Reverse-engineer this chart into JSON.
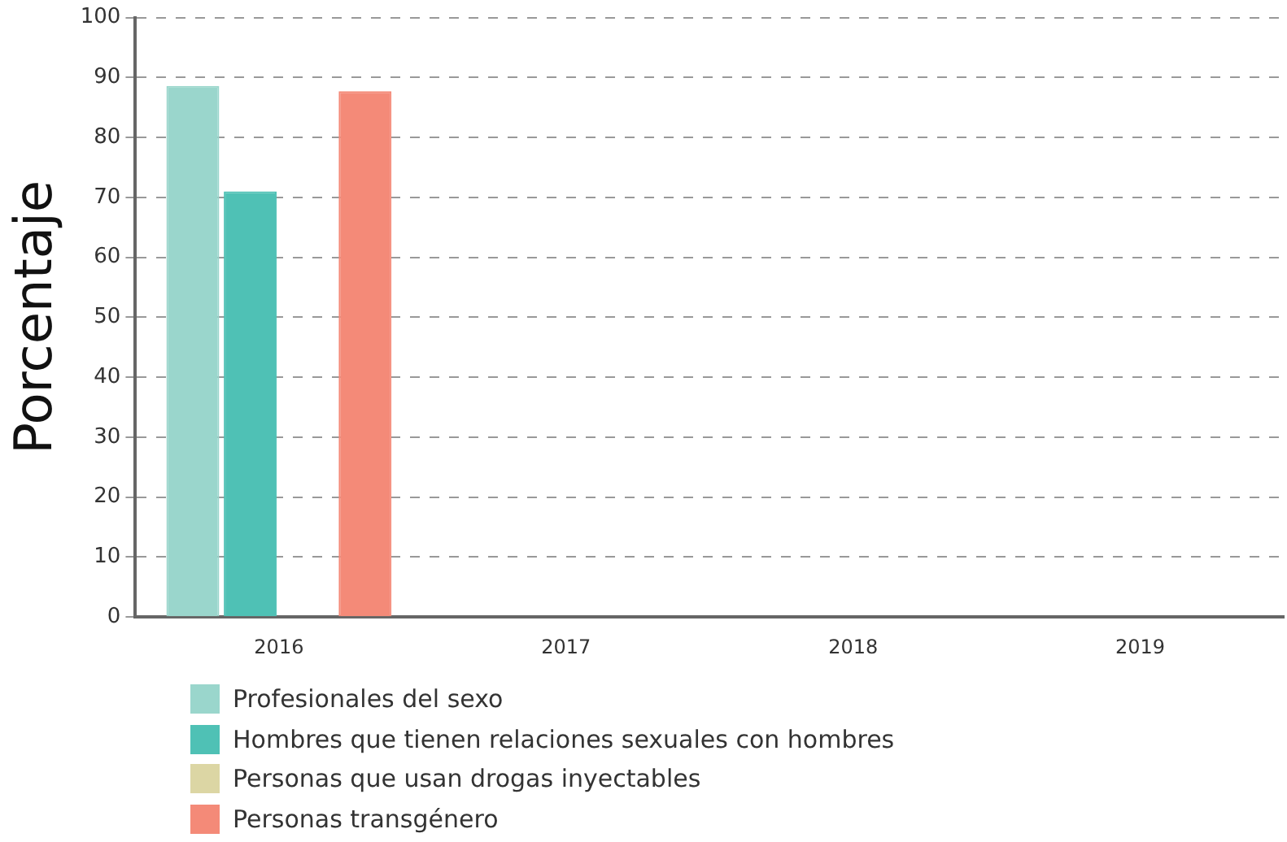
{
  "chart_data": {
    "type": "bar",
    "ylabel": "Porcentaje",
    "categories": [
      "2016",
      "2017",
      "2018",
      "2019"
    ],
    "series": [
      {
        "name": "Profesionales del sexo",
        "color": "#9ad6cc",
        "values": [
          88.6,
          null,
          null,
          null
        ]
      },
      {
        "name": "Hombres que tienen relaciones sexuales con hombres",
        "color": "#4fc1b5",
        "values": [
          71,
          null,
          null,
          null
        ]
      },
      {
        "name": "Personas que usan drogas inyectables",
        "color": "#dcd6a4",
        "values": [
          null,
          null,
          null,
          null
        ]
      },
      {
        "name": "Personas transgénero",
        "color": "#f48a78",
        "values": [
          87.7,
          null,
          null,
          null
        ]
      }
    ],
    "ylim": [
      0,
      100
    ],
    "yticks": [
      0,
      10,
      20,
      30,
      40,
      50,
      60,
      70,
      80,
      90,
      100
    ],
    "grid": "y",
    "legend": "bottom"
  }
}
